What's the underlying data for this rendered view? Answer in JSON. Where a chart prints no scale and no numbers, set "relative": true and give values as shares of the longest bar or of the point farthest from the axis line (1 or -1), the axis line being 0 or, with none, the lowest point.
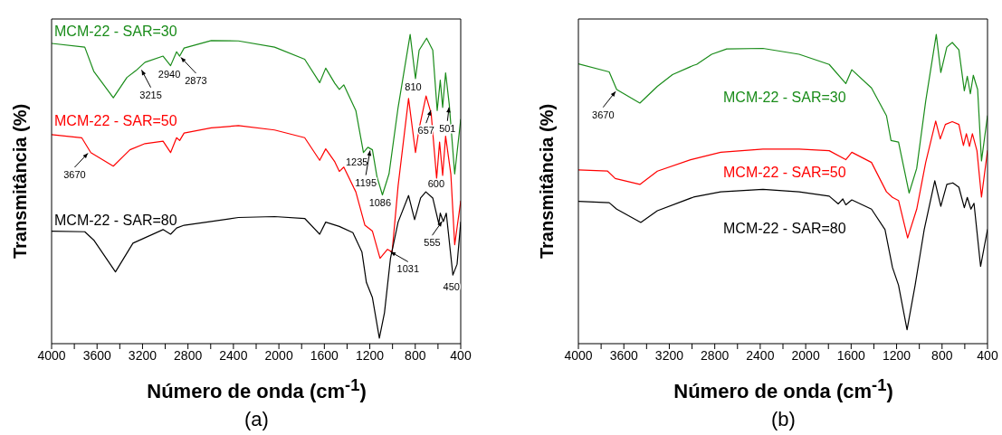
{
  "chart_data": [
    {
      "type": "line",
      "xlabel": "Número de onda (cm$^{-1}$)",
      "ylabel": "Transmitância (%)",
      "relative": true,
      "xlim": [
        4000,
        400
      ],
      "xticks": [
        4000,
        {
          "value": 3800,
          "label": null
        },
        3600,
        {
          "value": 3400,
          "label": null
        },
        3200,
        {
          "value": 3000,
          "label": null
        },
        2800,
        {
          "value": 2600,
          "label": null
        },
        2400,
        {
          "value": 2200,
          "label": null
        },
        2000,
        {
          "value": 1800,
          "label": null
        },
        1600,
        {
          "value": 1400,
          "label": null
        },
        1200,
        {
          "value": 1000,
          "label": null
        },
        800,
        {
          "value": 600,
          "label": null
        },
        400
      ],
      "series": [
        {
          "name": "MCM-22 - SAR=30",
          "color": "#1a8c1a",
          "x": [
            4000,
            3708,
            3629,
            3457,
            3337,
            3258,
            3178,
            3019,
            2953,
            2900,
            2873,
            2834,
            2595,
            2356,
            2038,
            1773,
            1641,
            1588,
            1508,
            1468,
            1429,
            1323,
            1256,
            1217,
            1177,
            1137,
            1089,
            1031,
            951,
            845,
            798,
            766,
            700,
            646,
            607,
            580,
            559,
            533,
            501,
            453,
            400
          ],
          "values": [
            0.971,
            0.959,
            0.881,
            0.795,
            0.861,
            0.883,
            0.91,
            0.93,
            0.899,
            0.944,
            0.93,
            0.956,
            0.98,
            0.979,
            0.959,
            0.92,
            0.844,
            0.891,
            0.842,
            0.822,
            0.837,
            0.754,
            0.618,
            0.635,
            0.627,
            0.54,
            0.481,
            0.549,
            0.764,
            1.0,
            0.857,
            0.949,
            0.988,
            0.949,
            0.754,
            0.852,
            0.764,
            0.876,
            0.774,
            0.549,
            0.725
          ]
        },
        {
          "name": "MCM-22 - SAR=50",
          "color": "#ff0000",
          "x": [
            4000,
            3735,
            3655,
            3457,
            3311,
            3178,
            3019,
            2953,
            2900,
            2873,
            2834,
            2595,
            2356,
            2038,
            1773,
            1641,
            1588,
            1508,
            1468,
            1429,
            1323,
            1243,
            1177,
            1110,
            1044,
            1004,
            951,
            859,
            798,
            766,
            705,
            660,
            612,
            586,
            559,
            533,
            487,
            453,
            400
          ],
          "values": [
            0.676,
            0.666,
            0.618,
            0.574,
            0.627,
            0.647,
            0.655,
            0.618,
            0.666,
            0.657,
            0.681,
            0.698,
            0.705,
            0.691,
            0.666,
            0.593,
            0.63,
            0.588,
            0.557,
            0.571,
            0.491,
            0.383,
            0.364,
            0.276,
            0.305,
            0.296,
            0.51,
            0.793,
            0.618,
            0.696,
            0.801,
            0.744,
            0.535,
            0.652,
            0.544,
            0.671,
            0.549,
            0.32,
            0.461
          ]
        },
        {
          "name": "MCM-22 - SAR=80",
          "color": "#000000",
          "x": [
            4000,
            3708,
            3629,
            3438,
            3284,
            3019,
            2953,
            2900,
            2834,
            2595,
            2356,
            2038,
            1773,
            1641,
            1588,
            1468,
            1349,
            1269,
            1230,
            1177,
            1116,
            1071,
            1018,
            951,
            859,
            806,
            753,
            707,
            646,
            593,
            580,
            553,
            527,
            469,
            432,
            400
          ],
          "values": [
            0.364,
            0.362,
            0.335,
            0.232,
            0.325,
            0.369,
            0.354,
            0.374,
            0.383,
            0.395,
            0.408,
            0.411,
            0.405,
            0.354,
            0.393,
            0.379,
            0.359,
            0.296,
            0.198,
            0.149,
            0.018,
            0.1,
            0.276,
            0.393,
            0.479,
            0.401,
            0.471,
            0.491,
            0.471,
            0.388,
            0.422,
            0.395,
            0.422,
            0.222,
            0.257,
            0.393
          ]
        }
      ],
      "annotations": [
        {
          "text": "3215",
          "x": 3215,
          "y": 0.89
        },
        {
          "text": "2940",
          "x": 2940,
          "y": 0.9
        },
        {
          "text": "2873",
          "x": 2873,
          "y": 0.93
        },
        {
          "text": "3670",
          "x": 3670,
          "y": 0.62
        },
        {
          "text": "1235",
          "x": 1235,
          "y": 0.62
        },
        {
          "text": "1195",
          "x": 1195,
          "y": 0.63
        },
        {
          "text": "1086",
          "x": 1086,
          "y": 0.48
        },
        {
          "text": "810",
          "x": 810,
          "y": 0.86
        },
        {
          "text": "657",
          "x": 657,
          "y": 0.76
        },
        {
          "text": "501",
          "x": 501,
          "y": 0.77
        },
        {
          "text": "600",
          "x": 600,
          "y": 0.54
        },
        {
          "text": "555",
          "x": 555,
          "y": 0.4
        },
        {
          "text": "1031",
          "x": 1031,
          "y": 0.3
        },
        {
          "text": "450",
          "x": 450,
          "y": 0.23
        },
        "(a)"
      ]
    },
    {
      "type": "line",
      "xlabel": "Número de onda (cm$^{-1}$)",
      "ylabel": "Transmitância (%)",
      "relative": true,
      "xlim": [
        4000,
        400
      ],
      "xticks": [
        4000,
        {
          "value": 3800,
          "label": null
        },
        3600,
        {
          "value": 3400,
          "label": null
        },
        3200,
        {
          "value": 3000,
          "label": null
        },
        2800,
        {
          "value": 2600,
          "label": null
        },
        2400,
        {
          "value": 2200,
          "label": null
        },
        2000,
        {
          "value": 1800,
          "label": null
        },
        1600,
        {
          "value": 1400,
          "label": null
        },
        1200,
        {
          "value": 1000,
          "label": null
        },
        800,
        {
          "value": 600,
          "label": null
        },
        400
      ],
      "series": [
        {
          "name": "MCM-22 - SAR=30",
          "color": "#1a8c1a",
          "x": [
            4000,
            3729,
            3663,
            3459,
            3305,
            3172,
            2987,
            2960,
            2827,
            2695,
            2376,
            2058,
            1793,
            1647,
            1594,
            1421,
            1289,
            1249,
            1183,
            1130,
            1090,
            1023,
            944,
            851,
            811,
            758,
            710,
            652,
            604,
            578,
            551,
            525,
            487,
            453,
            400
          ],
          "values": [
            0.905,
            0.879,
            0.822,
            0.778,
            0.832,
            0.87,
            0.9,
            0.903,
            0.936,
            0.953,
            0.955,
            0.936,
            0.903,
            0.841,
            0.886,
            0.827,
            0.737,
            0.657,
            0.652,
            0.558,
            0.487,
            0.567,
            0.784,
            1.0,
            0.877,
            0.959,
            0.974,
            0.95,
            0.818,
            0.865,
            0.808,
            0.868,
            0.822,
            0.591,
            0.737
          ]
        },
        {
          "name": "MCM-22 - SAR=50",
          "color": "#ff0000",
          "x": [
            4000,
            3743,
            3676,
            3459,
            3305,
            3013,
            2748,
            2376,
            2058,
            1793,
            1647,
            1594,
            1421,
            1289,
            1236,
            1183,
            1103,
            1023,
            944,
            856,
            816,
            771,
            710,
            652,
            612,
            586,
            559,
            533,
            493,
            453,
            400
          ],
          "values": [
            0.562,
            0.558,
            0.534,
            0.515,
            0.558,
            0.595,
            0.619,
            0.629,
            0.629,
            0.624,
            0.595,
            0.619,
            0.586,
            0.491,
            0.473,
            0.463,
            0.342,
            0.435,
            0.586,
            0.72,
            0.662,
            0.709,
            0.718,
            0.709,
            0.641,
            0.679,
            0.638,
            0.679,
            0.624,
            0.474,
            0.624
          ]
        },
        {
          "name": "MCM-22 - SAR=80",
          "color": "#000000",
          "x": [
            4000,
            3729,
            3663,
            3451,
            3305,
            2987,
            2748,
            2376,
            2058,
            1793,
            1713,
            1673,
            1647,
            1594,
            1421,
            1302,
            1236,
            1183,
            1108,
            1037,
            957,
            864,
            811,
            758,
            705,
            652,
            604,
            578,
            546,
            519,
            461,
            400
          ],
          "values": [
            0.46,
            0.456,
            0.435,
            0.392,
            0.43,
            0.474,
            0.491,
            0.499,
            0.491,
            0.477,
            0.452,
            0.468,
            0.449,
            0.465,
            0.435,
            0.369,
            0.246,
            0.189,
            0.045,
            0.189,
            0.369,
            0.527,
            0.444,
            0.515,
            0.52,
            0.506,
            0.44,
            0.473,
            0.435,
            0.454,
            0.25,
            0.369
          ]
        }
      ],
      "annotations": [
        {
          "text": "3670",
          "x": 3663,
          "y": 0.82
        },
        "(b)"
      ]
    }
  ]
}
